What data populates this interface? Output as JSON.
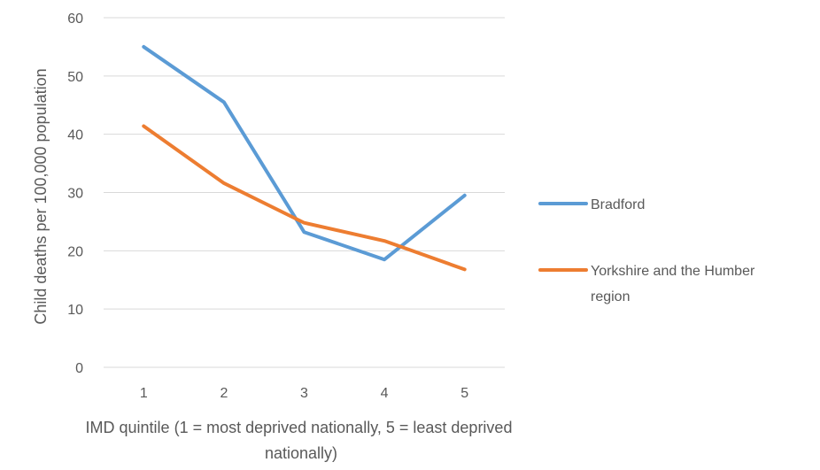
{
  "chart_data": {
    "type": "line",
    "x": [
      1,
      2,
      3,
      4,
      5
    ],
    "categories": [
      "1",
      "2",
      "3",
      "4",
      "5"
    ],
    "series": [
      {
        "name": "Bradford",
        "values": [
          55.0,
          45.5,
          23.2,
          18.5,
          29.5
        ],
        "color": "#5B9BD5"
      },
      {
        "name": "Yorkshire and the Humber region",
        "name_lines": [
          "Yorkshire and the Humber",
          "region"
        ],
        "values": [
          41.4,
          31.6,
          24.8,
          21.7,
          16.8
        ],
        "color": "#ED7D31"
      }
    ],
    "ylabel": "Child deaths per 100,000 population",
    "xlabel": "IMD quintile (1 = most deprived nationally, 5 = least deprived nationally)",
    "xlabel_lines": [
      "IMD quintile (1 = most deprived nationally, 5 = least deprived",
      "nationally)"
    ],
    "ylim": [
      0,
      60
    ],
    "yticks": [
      0,
      10,
      20,
      30,
      40,
      50,
      60
    ],
    "grid": true,
    "legend_position": "right",
    "gridline_color": "#D9D9D9"
  }
}
